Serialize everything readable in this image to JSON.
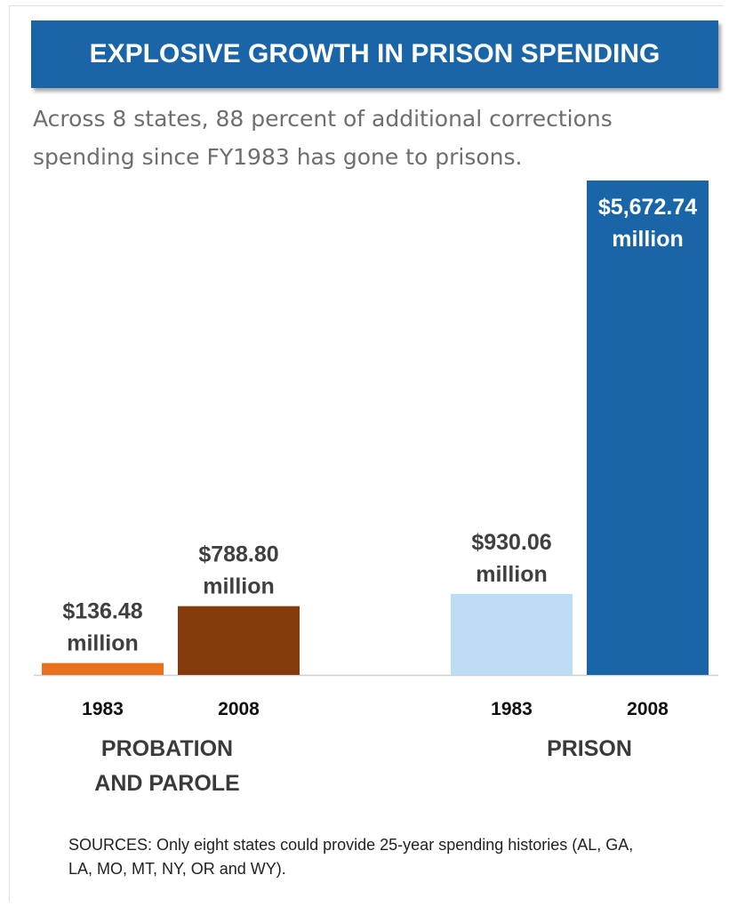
{
  "header": {
    "title": "EXPLOSIVE GROWTH IN PRISON SPENDING",
    "subtitle": "Across 8 states, 88 percent of additional corrections spending since FY1983 has gone to prisons."
  },
  "footer": {
    "sources": "SOURCES: Only eight states could provide 25-year spending histories (AL, GA, LA, MO, MT, NY, OR and WY)."
  },
  "colors": {
    "banner": "#1a64a8",
    "probation_1983": "#e8731f",
    "probation_2008": "#843c0c",
    "prison_1983": "#bdddf4",
    "prison_2008": "#1a64a8"
  },
  "chart_data": {
    "type": "bar",
    "title": "EXPLOSIVE GROWTH IN PRISON SPENDING",
    "unit": "million",
    "groups": [
      {
        "name": "PROBATION AND PAROLE",
        "name_lines": [
          "PROBATION",
          "AND PAROLE"
        ],
        "bars": [
          {
            "year": "1983",
            "value": 136.48,
            "label_lines": [
              "$136.48",
              "million"
            ],
            "color": "#e8731f"
          },
          {
            "year": "2008",
            "value": 788.8,
            "label_lines": [
              "$788.80",
              "million"
            ],
            "color": "#843c0c"
          }
        ]
      },
      {
        "name": "PRISON",
        "name_lines": [
          "PRISON"
        ],
        "bars": [
          {
            "year": "1983",
            "value": 930.06,
            "label_lines": [
              "$930.06",
              "million"
            ],
            "color": "#bdddf4"
          },
          {
            "year": "2008",
            "value": 5672.74,
            "label_lines": [
              "$5,672.74",
              "million"
            ],
            "color": "#1a64a8",
            "label_inside": true
          }
        ]
      }
    ],
    "ylim": [
      0,
      5672.74
    ],
    "grid": false,
    "legend": "none"
  }
}
